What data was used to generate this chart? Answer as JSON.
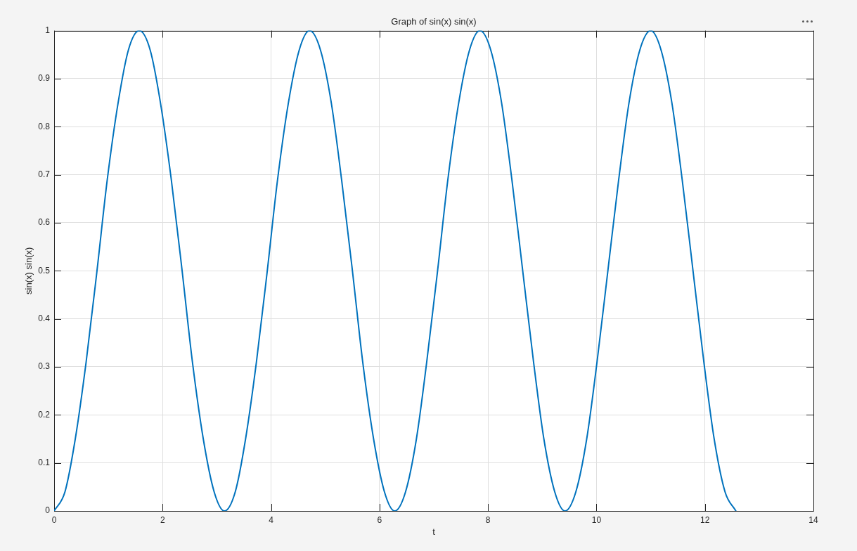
{
  "chart_data": {
    "type": "line",
    "title": "Graph of sin(x) sin(x)",
    "xlabel": "t",
    "ylabel": "sin(x) sin(x)",
    "x": [
      0,
      0.2,
      0.39,
      0.59,
      0.79,
      0.98,
      1.18,
      1.37,
      1.57,
      1.77,
      1.96,
      2.16,
      2.36,
      2.55,
      2.75,
      2.95,
      3.14,
      3.34,
      3.53,
      3.73,
      3.93,
      4.12,
      4.32,
      4.52,
      4.71,
      4.91,
      5.11,
      5.3,
      5.5,
      5.69,
      5.89,
      6.09,
      6.28,
      6.48,
      6.68,
      6.87,
      7.07,
      7.26,
      7.46,
      7.66,
      7.85,
      8.05,
      8.25,
      8.44,
      8.64,
      8.84,
      9.03,
      9.23,
      9.42,
      9.62,
      9.82,
      10.01,
      10.21,
      10.41,
      10.6,
      10.8,
      11.0,
      11.19,
      11.39,
      11.58,
      11.78,
      11.98,
      12.17,
      12.37,
      12.57
    ],
    "series": [
      {
        "color": "#0072bd",
        "values": [
          0,
          0.04,
          0.15,
          0.31,
          0.5,
          0.69,
          0.85,
          0.96,
          1,
          0.96,
          0.85,
          0.69,
          0.5,
          0.31,
          0.15,
          0.04,
          0,
          0.04,
          0.15,
          0.31,
          0.5,
          0.69,
          0.85,
          0.96,
          1,
          0.96,
          0.85,
          0.69,
          0.5,
          0.31,
          0.15,
          0.04,
          0,
          0.04,
          0.15,
          0.31,
          0.5,
          0.69,
          0.85,
          0.96,
          1,
          0.96,
          0.85,
          0.69,
          0.5,
          0.31,
          0.15,
          0.04,
          0,
          0.04,
          0.15,
          0.31,
          0.5,
          0.69,
          0.85,
          0.96,
          1,
          0.96,
          0.85,
          0.69,
          0.5,
          0.31,
          0.15,
          0.04,
          0
        ]
      }
    ],
    "xlim": [
      0,
      14
    ],
    "xticks": [
      0,
      2,
      4,
      6,
      8,
      10,
      12,
      14
    ],
    "ylim": [
      0,
      1
    ],
    "yticks": [
      0,
      0.1,
      0.2,
      0.3,
      0.4,
      0.5,
      0.6,
      0.7,
      0.8,
      0.9,
      1
    ],
    "grid": true,
    "line_style": "solid"
  }
}
